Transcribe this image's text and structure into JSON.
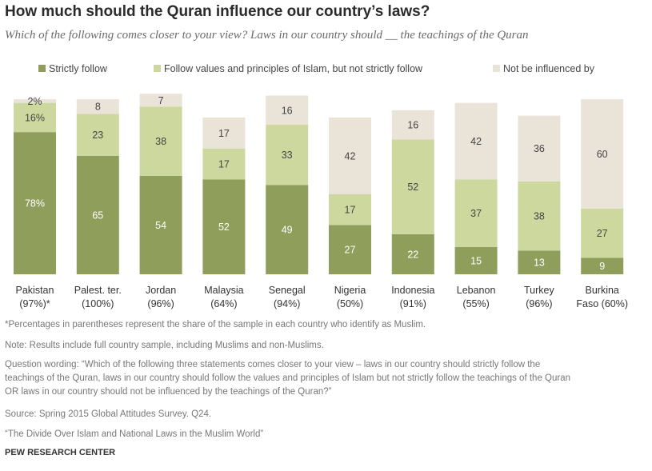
{
  "header": {
    "title": "How much should the Quran influence our country’s laws?",
    "subtitle": "Which of the following comes closer to your view? Laws in our country should __ the teachings of the Quran"
  },
  "colors": {
    "strict": "#8f9e5a",
    "values": "#cdd89e",
    "none": "#e9e3d8",
    "label_dark": "#ffffff",
    "label_light": "#444444"
  },
  "chart_data": {
    "type": "bar",
    "stacked": true,
    "orientation": "vertical",
    "title": "How much should the Quran influence our country’s laws?",
    "legend": {
      "position": "top",
      "entries": [
        "Strictly follow",
        "Follow values and principles of Islam, but not strictly follow",
        "Not be influenced by"
      ]
    },
    "categories": [
      {
        "name": "Pakistan",
        "sub": "(97%)*"
      },
      {
        "name": "Palest. ter.",
        "sub": "(100%)"
      },
      {
        "name": "Jordan",
        "sub": "(96%)"
      },
      {
        "name": "Malaysia",
        "sub": "(64%)"
      },
      {
        "name": "Senegal",
        "sub": "(94%)"
      },
      {
        "name": "Nigeria",
        "sub": "(50%)"
      },
      {
        "name": "Indonesia",
        "sub": "(91%)"
      },
      {
        "name": "Lebanon",
        "sub": "(55%)"
      },
      {
        "name": "Turkey",
        "sub": "(96%)"
      },
      {
        "name": "Burkina",
        "sub": "Faso (60%)"
      }
    ],
    "series": [
      {
        "name": "Strictly follow",
        "values": [
          78,
          65,
          54,
          52,
          49,
          27,
          22,
          15,
          13,
          9
        ],
        "labels": [
          "78%",
          "65",
          "54",
          "52",
          "49",
          "27",
          "22",
          "15",
          "13",
          "9"
        ]
      },
      {
        "name": "Follow values and principles of Islam, but not strictly follow",
        "values": [
          16,
          23,
          38,
          17,
          33,
          17,
          52,
          37,
          38,
          27
        ],
        "labels": [
          "16%",
          "23",
          "38",
          "17",
          "33",
          "17",
          "52",
          "37",
          "38",
          "27"
        ]
      },
      {
        "name": "Not be influenced by",
        "values": [
          2,
          8,
          7,
          17,
          16,
          42,
          16,
          42,
          36,
          60
        ],
        "labels": [
          "2%",
          "8",
          "7",
          "17",
          "16",
          "42",
          "16",
          "42",
          "36",
          "60"
        ]
      }
    ],
    "ylim": [
      0,
      100
    ]
  },
  "notes": {
    "percent_note": "*Percentages in parentheses represent the share of the sample in each country who identify as Muslim.",
    "sample_note": "Note: Results include full country sample, including Muslims and non-Muslims.",
    "question_wording": [
      "Question wording: “Which of the following three statements comes closer to your view – laws in our country should strictly follow the",
      "teachings of the Quran, laws in our country should follow the values and principles of Islam but not strictly follow the teachings of the Quran",
      "OR laws in our country should not be influenced by the teachings of the Quran?”"
    ],
    "source": "Source: Spring 2015 Global Attitudes Survey. Q24.",
    "report": "“The Divide Over Islam and National Laws in the Muslim World”",
    "org": "PEW RESEARCH CENTER"
  }
}
